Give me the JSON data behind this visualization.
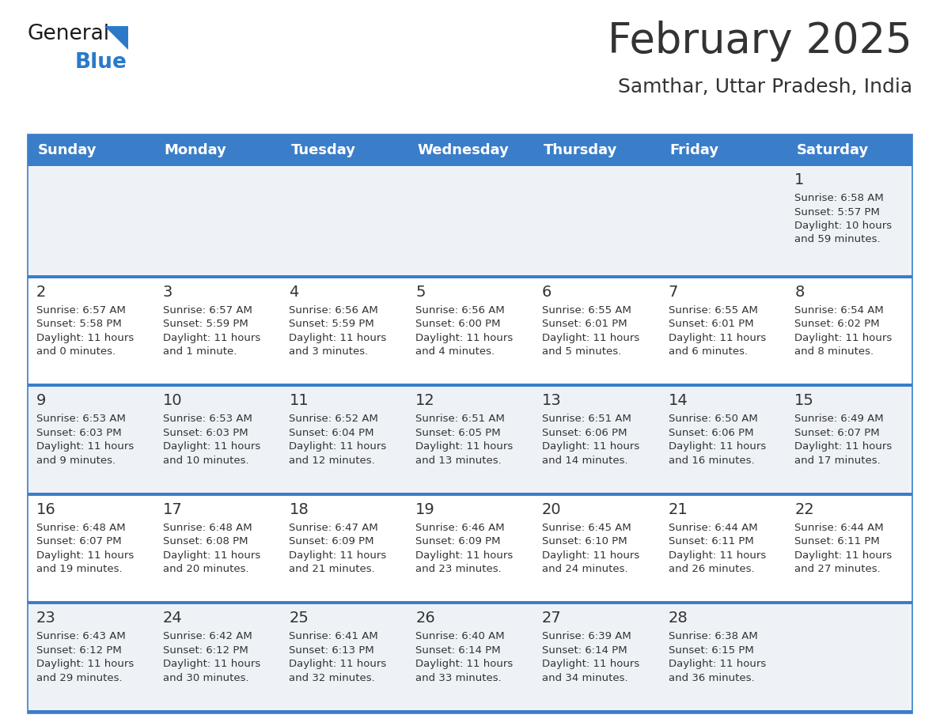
{
  "title": "February 2025",
  "subtitle": "Samthar, Uttar Pradesh, India",
  "days_of_week": [
    "Sunday",
    "Monday",
    "Tuesday",
    "Wednesday",
    "Thursday",
    "Friday",
    "Saturday"
  ],
  "header_bg": "#3a7ec9",
  "header_text": "#ffffff",
  "row_bg_light": "#eef2f7",
  "row_bg_white": "#ffffff",
  "separator_color": "#3a7ec9",
  "text_color": "#333333",
  "day_num_color": "#333333",
  "calendar": [
    [
      null,
      null,
      null,
      null,
      null,
      null,
      1
    ],
    [
      2,
      3,
      4,
      5,
      6,
      7,
      8
    ],
    [
      9,
      10,
      11,
      12,
      13,
      14,
      15
    ],
    [
      16,
      17,
      18,
      19,
      20,
      21,
      22
    ],
    [
      23,
      24,
      25,
      26,
      27,
      28,
      null
    ]
  ],
  "cell_data": {
    "1": {
      "sunrise": "6:58 AM",
      "sunset": "5:57 PM",
      "daylight": "10 hours",
      "daylight2": "and 59 minutes."
    },
    "2": {
      "sunrise": "6:57 AM",
      "sunset": "5:58 PM",
      "daylight": "11 hours",
      "daylight2": "and 0 minutes."
    },
    "3": {
      "sunrise": "6:57 AM",
      "sunset": "5:59 PM",
      "daylight": "11 hours",
      "daylight2": "and 1 minute."
    },
    "4": {
      "sunrise": "6:56 AM",
      "sunset": "5:59 PM",
      "daylight": "11 hours",
      "daylight2": "and 3 minutes."
    },
    "5": {
      "sunrise": "6:56 AM",
      "sunset": "6:00 PM",
      "daylight": "11 hours",
      "daylight2": "and 4 minutes."
    },
    "6": {
      "sunrise": "6:55 AM",
      "sunset": "6:01 PM",
      "daylight": "11 hours",
      "daylight2": "and 5 minutes."
    },
    "7": {
      "sunrise": "6:55 AM",
      "sunset": "6:01 PM",
      "daylight": "11 hours",
      "daylight2": "and 6 minutes."
    },
    "8": {
      "sunrise": "6:54 AM",
      "sunset": "6:02 PM",
      "daylight": "11 hours",
      "daylight2": "and 8 minutes."
    },
    "9": {
      "sunrise": "6:53 AM",
      "sunset": "6:03 PM",
      "daylight": "11 hours",
      "daylight2": "and 9 minutes."
    },
    "10": {
      "sunrise": "6:53 AM",
      "sunset": "6:03 PM",
      "daylight": "11 hours",
      "daylight2": "and 10 minutes."
    },
    "11": {
      "sunrise": "6:52 AM",
      "sunset": "6:04 PM",
      "daylight": "11 hours",
      "daylight2": "and 12 minutes."
    },
    "12": {
      "sunrise": "6:51 AM",
      "sunset": "6:05 PM",
      "daylight": "11 hours",
      "daylight2": "and 13 minutes."
    },
    "13": {
      "sunrise": "6:51 AM",
      "sunset": "6:06 PM",
      "daylight": "11 hours",
      "daylight2": "and 14 minutes."
    },
    "14": {
      "sunrise": "6:50 AM",
      "sunset": "6:06 PM",
      "daylight": "11 hours",
      "daylight2": "and 16 minutes."
    },
    "15": {
      "sunrise": "6:49 AM",
      "sunset": "6:07 PM",
      "daylight": "11 hours",
      "daylight2": "and 17 minutes."
    },
    "16": {
      "sunrise": "6:48 AM",
      "sunset": "6:07 PM",
      "daylight": "11 hours",
      "daylight2": "and 19 minutes."
    },
    "17": {
      "sunrise": "6:48 AM",
      "sunset": "6:08 PM",
      "daylight": "11 hours",
      "daylight2": "and 20 minutes."
    },
    "18": {
      "sunrise": "6:47 AM",
      "sunset": "6:09 PM",
      "daylight": "11 hours",
      "daylight2": "and 21 minutes."
    },
    "19": {
      "sunrise": "6:46 AM",
      "sunset": "6:09 PM",
      "daylight": "11 hours",
      "daylight2": "and 23 minutes."
    },
    "20": {
      "sunrise": "6:45 AM",
      "sunset": "6:10 PM",
      "daylight": "11 hours",
      "daylight2": "and 24 minutes."
    },
    "21": {
      "sunrise": "6:44 AM",
      "sunset": "6:11 PM",
      "daylight": "11 hours",
      "daylight2": "and 26 minutes."
    },
    "22": {
      "sunrise": "6:44 AM",
      "sunset": "6:11 PM",
      "daylight": "11 hours",
      "daylight2": "and 27 minutes."
    },
    "23": {
      "sunrise": "6:43 AM",
      "sunset": "6:12 PM",
      "daylight": "11 hours",
      "daylight2": "and 29 minutes."
    },
    "24": {
      "sunrise": "6:42 AM",
      "sunset": "6:12 PM",
      "daylight": "11 hours",
      "daylight2": "and 30 minutes."
    },
    "25": {
      "sunrise": "6:41 AM",
      "sunset": "6:13 PM",
      "daylight": "11 hours",
      "daylight2": "and 32 minutes."
    },
    "26": {
      "sunrise": "6:40 AM",
      "sunset": "6:14 PM",
      "daylight": "11 hours",
      "daylight2": "and 33 minutes."
    },
    "27": {
      "sunrise": "6:39 AM",
      "sunset": "6:14 PM",
      "daylight": "11 hours",
      "daylight2": "and 34 minutes."
    },
    "28": {
      "sunrise": "6:38 AM",
      "sunset": "6:15 PM",
      "daylight": "11 hours",
      "daylight2": "and 36 minutes."
    }
  },
  "logo_color_general": "#1a1a1a",
  "logo_color_blue": "#2a7ac9",
  "logo_triangle_color": "#2a7ac9",
  "title_fontsize": 38,
  "subtitle_fontsize": 18,
  "header_fontsize": 13,
  "day_num_fontsize": 14,
  "cell_text_fontsize": 9.5
}
